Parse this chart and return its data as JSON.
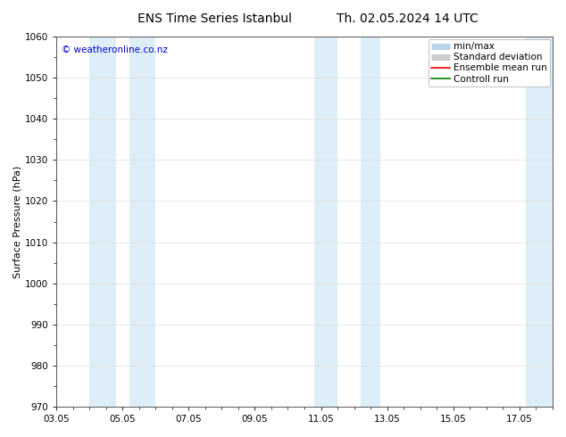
{
  "title_left": "ENS Time Series Istanbul",
  "title_right": "Th. 02.05.2024 14 UTC",
  "ylabel": "Surface Pressure (hPa)",
  "ylim": [
    970,
    1060
  ],
  "yticks": [
    970,
    980,
    990,
    1000,
    1010,
    1020,
    1030,
    1040,
    1050,
    1060
  ],
  "xlim_start": 0.0,
  "xlim_end": 15.0,
  "xtick_labels": [
    "03.05",
    "05.05",
    "07.05",
    "09.05",
    "11.05",
    "13.05",
    "15.05",
    "17.05"
  ],
  "xtick_positions": [
    0,
    2,
    4,
    6,
    8,
    10,
    12,
    14
  ],
  "shaded_bands": [
    {
      "x_start": 1.0,
      "x_end": 1.8,
      "color": "#ddeef8"
    },
    {
      "x_start": 2.2,
      "x_end": 3.0,
      "color": "#ddeef8"
    },
    {
      "x_start": 7.8,
      "x_end": 8.5,
      "color": "#ddeef8"
    },
    {
      "x_start": 9.2,
      "x_end": 9.8,
      "color": "#ddeef8"
    },
    {
      "x_start": 14.2,
      "x_end": 15.0,
      "color": "#ddeef8"
    }
  ],
  "watermark": "© weatheronline.co.nz",
  "watermark_color": "#0000cc",
  "bg_color": "#ffffff",
  "plot_bg_color": "#ffffff",
  "legend_labels": [
    "min/max",
    "Standard deviation",
    "Ensemble mean run",
    "Controll run"
  ],
  "legend_colors": [
    "#b8d4e8",
    "#cccccc",
    "#ff0000",
    "#008000"
  ],
  "title_fontsize": 10,
  "axis_label_fontsize": 8,
  "tick_fontsize": 7.5,
  "legend_fontsize": 7.5
}
